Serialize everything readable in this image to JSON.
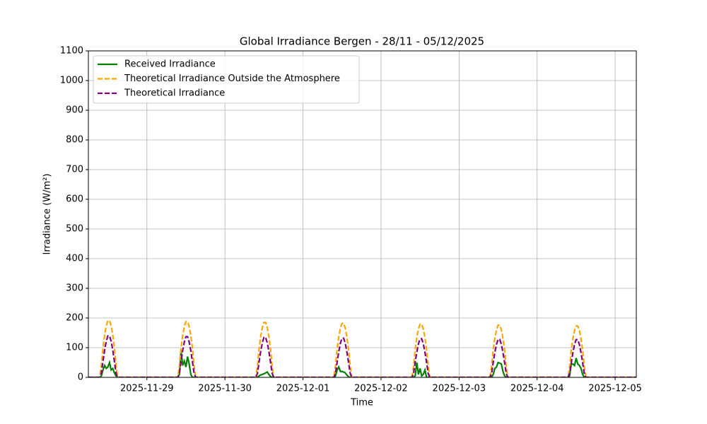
{
  "chart_data": {
    "type": "line",
    "title": "Global Irradiance Bergen - 28/11 - 05/12/2025",
    "x_label": "Time",
    "y_label": "Irradiance (W/m²)",
    "x": [
      "2025-11-28 06:00",
      "2025-11-28 09:30",
      "2025-11-28 10:00",
      "2025-11-28 10:30",
      "2025-11-28 11:00",
      "2025-11-28 11:30",
      "2025-11-28 12:00",
      "2025-11-28 12:30",
      "2025-11-28 13:00",
      "2025-11-28 13:30",
      "2025-11-28 14:00",
      "2025-11-28 14:30",
      "2025-11-28 15:00",
      "2025-11-29 09:30",
      "2025-11-29 10:00",
      "2025-11-29 10:30",
      "2025-11-29 11:00",
      "2025-11-29 11:30",
      "2025-11-29 12:00",
      "2025-11-29 12:30",
      "2025-11-29 13:00",
      "2025-11-29 13:30",
      "2025-11-29 14:00",
      "2025-11-29 14:30",
      "2025-11-29 15:00",
      "2025-11-30 09:30",
      "2025-11-30 10:00",
      "2025-11-30 10:30",
      "2025-11-30 11:00",
      "2025-11-30 11:30",
      "2025-11-30 12:00",
      "2025-11-30 12:30",
      "2025-11-30 13:00",
      "2025-11-30 13:30",
      "2025-11-30 14:00",
      "2025-11-30 14:30",
      "2025-11-30 15:00",
      "2025-12-01 09:30",
      "2025-12-01 10:00",
      "2025-12-01 10:30",
      "2025-12-01 11:00",
      "2025-12-01 11:30",
      "2025-12-01 12:00",
      "2025-12-01 12:30",
      "2025-12-01 13:00",
      "2025-12-01 13:30",
      "2025-12-01 14:00",
      "2025-12-01 14:30",
      "2025-12-01 15:00",
      "2025-12-02 09:30",
      "2025-12-02 10:00",
      "2025-12-02 10:30",
      "2025-12-02 11:00",
      "2025-12-02 11:30",
      "2025-12-02 12:00",
      "2025-12-02 12:30",
      "2025-12-02 13:00",
      "2025-12-02 13:30",
      "2025-12-02 14:00",
      "2025-12-02 14:30",
      "2025-12-02 15:00",
      "2025-12-03 09:30",
      "2025-12-03 10:00",
      "2025-12-03 10:30",
      "2025-12-03 11:00",
      "2025-12-03 11:30",
      "2025-12-03 12:00",
      "2025-12-03 12:30",
      "2025-12-03 13:00",
      "2025-12-03 13:30",
      "2025-12-03 14:00",
      "2025-12-03 14:30",
      "2025-12-03 15:00",
      "2025-12-04 09:30",
      "2025-12-04 10:00",
      "2025-12-04 10:30",
      "2025-12-04 11:00",
      "2025-12-04 11:30",
      "2025-12-04 12:00",
      "2025-12-04 12:30",
      "2025-12-04 13:00",
      "2025-12-04 13:30",
      "2025-12-04 14:00",
      "2025-12-04 14:30",
      "2025-12-04 15:00",
      "2025-12-05 06:30"
    ],
    "series": [
      {
        "name": "Received Irradiance",
        "color": "#008000",
        "linestyle": "solid",
        "values": [
          0,
          0,
          5,
          25,
          40,
          30,
          35,
          50,
          25,
          30,
          15,
          5,
          0,
          0,
          10,
          90,
          40,
          55,
          35,
          70,
          45,
          10,
          0,
          0,
          0,
          0,
          0,
          5,
          8,
          10,
          12,
          15,
          18,
          10,
          3,
          0,
          0,
          0,
          5,
          25,
          35,
          20,
          20,
          18,
          15,
          8,
          2,
          0,
          0,
          0,
          0,
          5,
          50,
          10,
          30,
          5,
          10,
          25,
          0,
          0,
          0,
          0,
          0,
          10,
          30,
          35,
          50,
          48,
          45,
          20,
          5,
          0,
          0,
          0,
          5,
          45,
          45,
          40,
          65,
          45,
          40,
          30,
          10,
          0,
          0,
          0
        ]
      },
      {
        "name": "Theoretical Irradiance Outside the Atmosphere",
        "color": "#ffa500",
        "linestyle": "dashed",
        "values": [
          0,
          0,
          41,
          100,
          143,
          174,
          191,
          191,
          174,
          143,
          100,
          41,
          0,
          0,
          40,
          99,
          141,
          171,
          188,
          188,
          171,
          141,
          99,
          40,
          0,
          0,
          39,
          97,
          138,
          168,
          185,
          185,
          168,
          138,
          97,
          39,
          0,
          0,
          39,
          96,
          136,
          166,
          182,
          182,
          166,
          136,
          96,
          39,
          0,
          0,
          38,
          94,
          134,
          163,
          179,
          179,
          163,
          134,
          94,
          38,
          0,
          0,
          37,
          93,
          132,
          160,
          176,
          176,
          160,
          132,
          93,
          37,
          0,
          0,
          37,
          91,
          130,
          158,
          173,
          173,
          158,
          130,
          91,
          37,
          0,
          0
        ]
      },
      {
        "name": "Theoretical Irradiance",
        "color": "#800080",
        "linestyle": "dashed",
        "values": [
          0,
          0,
          14,
          54,
          92,
          122,
          140,
          140,
          122,
          92,
          54,
          14,
          0,
          0,
          14,
          53,
          90,
          119,
          137,
          137,
          119,
          90,
          53,
          14,
          0,
          0,
          14,
          52,
          88,
          117,
          135,
          135,
          117,
          88,
          52,
          14,
          0,
          0,
          14,
          51,
          86,
          115,
          132,
          132,
          115,
          86,
          51,
          14,
          0,
          0,
          13,
          51,
          85,
          113,
          130,
          130,
          113,
          85,
          51,
          13,
          0,
          0,
          13,
          50,
          84,
          111,
          128,
          128,
          111,
          84,
          50,
          13,
          0,
          0,
          13,
          49,
          83,
          111,
          127,
          127,
          111,
          83,
          49,
          13,
          0,
          0
        ]
      }
    ],
    "xlim": [
      "2025-11-28 06:00",
      "2025-12-05 06:30"
    ],
    "xticks": [
      "2025-11-29",
      "2025-11-30",
      "2025-12-01",
      "2025-12-02",
      "2025-12-03",
      "2025-12-04",
      "2025-12-05"
    ],
    "ylim": [
      0,
      1100
    ],
    "yticks": [
      0,
      100,
      200,
      300,
      400,
      500,
      600,
      700,
      800,
      900,
      1000,
      1100
    ],
    "grid": true,
    "legend": "upper left"
  }
}
